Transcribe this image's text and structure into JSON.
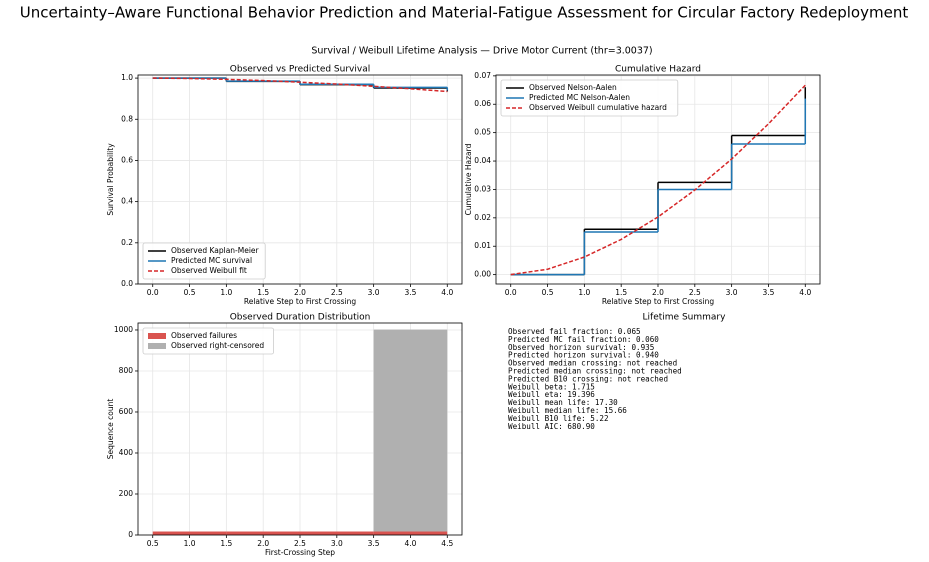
{
  "title": "Uncertainty–Aware Functional Behavior Prediction and Material-Fatigue Assessment for Circular Factory Redeployment",
  "subtitle": "Survival / Weibull Lifetime Analysis — Drive Motor Current (thr=3.0037)",
  "chart_data": [
    {
      "type": "line",
      "title": "Observed vs Predicted Survival",
      "xlabel": "Relative Step to First Crossing",
      "ylabel": "Survival Probability",
      "xlim": [
        -0.2,
        4.2
      ],
      "ylim": [
        0,
        1.015
      ],
      "xticks": [
        {
          "value": 0,
          "label": "0.0"
        },
        0.5,
        {
          "value": 1,
          "label": "1.0"
        },
        1.5,
        {
          "value": 2,
          "label": "2.0"
        },
        2.5,
        {
          "value": 3,
          "label": "3.0"
        },
        3.5,
        {
          "value": 4,
          "label": "4.0"
        }
      ],
      "yticks": [
        {
          "value": 0,
          "label": "0.0"
        },
        0.2,
        0.4,
        0.6,
        0.8,
        {
          "value": 1,
          "label": "1.0"
        }
      ],
      "grid": true,
      "legend": "lower left",
      "series": [
        {
          "name": "Observed Kaplan-Meier",
          "color": "#000000",
          "drawstyle": "steps-post",
          "linestyle": "solid",
          "x": [
            0,
            1,
            2,
            3,
            4
          ],
          "values": [
            1.0,
            0.984,
            0.968,
            0.952,
            0.935
          ]
        },
        {
          "name": "Predicted MC survival",
          "color": "#1f77b4",
          "drawstyle": "steps-post",
          "linestyle": "solid",
          "x": [
            0,
            1,
            2,
            3,
            4
          ],
          "values": [
            1.0,
            0.985,
            0.97,
            0.955,
            0.94
          ]
        },
        {
          "name": "Observed Weibull fit",
          "color": "#d62728",
          "drawstyle": "default",
          "linestyle": "dashed",
          "x": [
            0,
            0.5,
            1,
            1.5,
            2,
            2.5,
            3,
            3.5,
            4
          ],
          "values": [
            1.0,
            0.998,
            0.994,
            0.988,
            0.98,
            0.971,
            0.96,
            0.948,
            0.935
          ]
        }
      ]
    },
    {
      "type": "line",
      "title": "Cumulative Hazard",
      "xlabel": "Relative Step to First Crossing",
      "ylabel": "Cumulative Hazard",
      "xlim": [
        -0.2,
        4.2
      ],
      "ylim": [
        -0.0033,
        0.0703
      ],
      "xticks": [
        {
          "value": 0,
          "label": "0.0"
        },
        0.5,
        {
          "value": 1,
          "label": "1.0"
        },
        1.5,
        {
          "value": 2,
          "label": "2.0"
        },
        2.5,
        {
          "value": 3,
          "label": "3.0"
        },
        3.5,
        {
          "value": 4,
          "label": "4.0"
        }
      ],
      "yticks": [
        {
          "value": 0,
          "label": "0.00"
        },
        0.01,
        0.02,
        0.03,
        0.04,
        0.05,
        0.06,
        0.07
      ],
      "grid": true,
      "legend": "upper left",
      "series": [
        {
          "name": "Observed Nelson-Aalen",
          "color": "#000000",
          "drawstyle": "steps-post",
          "linestyle": "solid",
          "x": [
            0,
            1,
            2,
            3,
            4
          ],
          "values": [
            0,
            0.016,
            0.0325,
            0.049,
            0.066
          ]
        },
        {
          "name": "Predicted MC Nelson-Aalen",
          "color": "#1f77b4",
          "drawstyle": "steps-post",
          "linestyle": "solid",
          "x": [
            0,
            1,
            2,
            3,
            4
          ],
          "values": [
            0,
            0.015,
            0.03,
            0.046,
            0.062
          ]
        },
        {
          "name": "Observed Weibull cumulative hazard",
          "color": "#d62728",
          "drawstyle": "default",
          "linestyle": "dashed",
          "x": [
            0,
            0.5,
            1,
            1.5,
            2,
            2.5,
            3,
            3.5,
            4
          ],
          "values": [
            0,
            0.0019,
            0.0062,
            0.0124,
            0.0203,
            0.0298,
            0.0407,
            0.0531,
            0.0667
          ]
        }
      ]
    },
    {
      "type": "histogram",
      "title": "Observed Duration Distribution",
      "xlabel": "First-Crossing Step",
      "ylabel": "Sequence count",
      "xlim": [
        0.3,
        4.7
      ],
      "ylim": [
        0,
        1034
      ],
      "xticks": [
        0.5,
        {
          "value": 1,
          "label": "1.0"
        },
        1.5,
        {
          "value": 2,
          "label": "2.0"
        },
        2.5,
        {
          "value": 3,
          "label": "3.0"
        },
        3.5,
        {
          "value": 4,
          "label": "4.0"
        },
        4.5
      ],
      "yticks": [
        0,
        200,
        400,
        600,
        800,
        1000
      ],
      "grid": true,
      "legend": "upper left",
      "stacked": true,
      "bins": [
        0.5,
        1.5,
        2.5,
        3.5,
        4.5
      ],
      "series": [
        {
          "name": "Observed failures",
          "color": "#d9534f",
          "values": [
            17,
            17,
            17,
            17
          ]
        },
        {
          "name": "Observed right-censored",
          "color": "#b0b0b0",
          "values": [
            0,
            0,
            0,
            985
          ]
        }
      ]
    },
    {
      "type": "text",
      "title": "Lifetime Summary",
      "lines": [
        "Observed fail fraction: 0.065",
        "Predicted MC fail fraction: 0.060",
        "Observed horizon survival: 0.935",
        "Predicted horizon survival: 0.940",
        "Observed median crossing: not reached",
        "Predicted median crossing: not reached",
        "Predicted B10 crossing: not reached",
        "Weibull beta: 1.715",
        "Weibull eta: 19.396",
        "Weibull mean life: 17.30",
        "Weibull median life: 15.66",
        "Weibull B10 life: 5.22",
        "Weibull AIC: 680.90"
      ]
    }
  ]
}
